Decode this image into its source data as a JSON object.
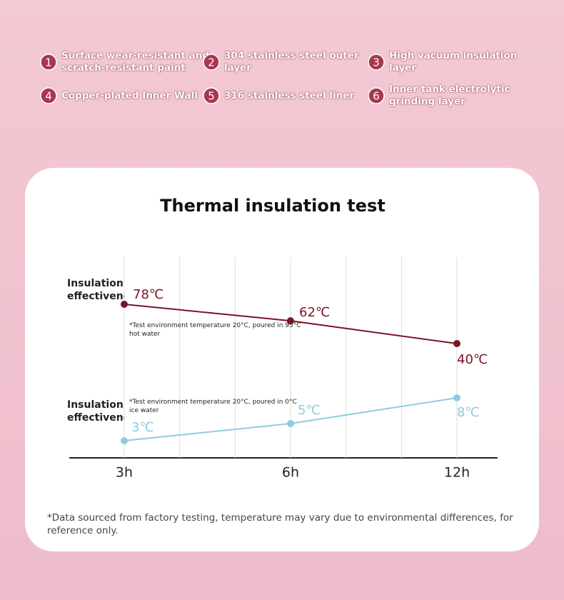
{
  "features": [
    {
      "number": "1",
      "text": "Surface wear-resistant and scratch-resistant paint"
    },
    {
      "number": "2",
      "text": "304 stainless steel outer layer"
    },
    {
      "number": "3",
      "text": "High vacuum insulation layer"
    },
    {
      "number": "4",
      "text": "Copper-plated Inner Wall"
    },
    {
      "number": "5",
      "text": "316 stainless steel liner"
    },
    {
      "number": "6",
      "text": "Inner tank electrolytic grinding layer"
    }
  ],
  "chart_data": {
    "type": "line",
    "title": "Thermal insulation test",
    "categories": [
      "3h",
      "6h",
      "12h"
    ],
    "series": [
      {
        "name": "Insulation effectiveness",
        "color": "#7b1424",
        "values": [
          78,
          62,
          40
        ],
        "value_labels": [
          "78℃",
          "62℃",
          "40℃"
        ],
        "note": "*Test environment temperature 20°C, poured in 95°C hot water"
      },
      {
        "name": "Insulation effectiveness",
        "color": "#8ecbe0",
        "values": [
          3,
          5,
          8
        ],
        "value_labels": [
          "3℃",
          "5℃",
          "8℃"
        ],
        "note": "*Test environment temperature 20°C, poured in 0°C ice water"
      }
    ],
    "footnote": "*Data sourced from factory testing, temperature may vary due to environmental differences, for reference only."
  }
}
